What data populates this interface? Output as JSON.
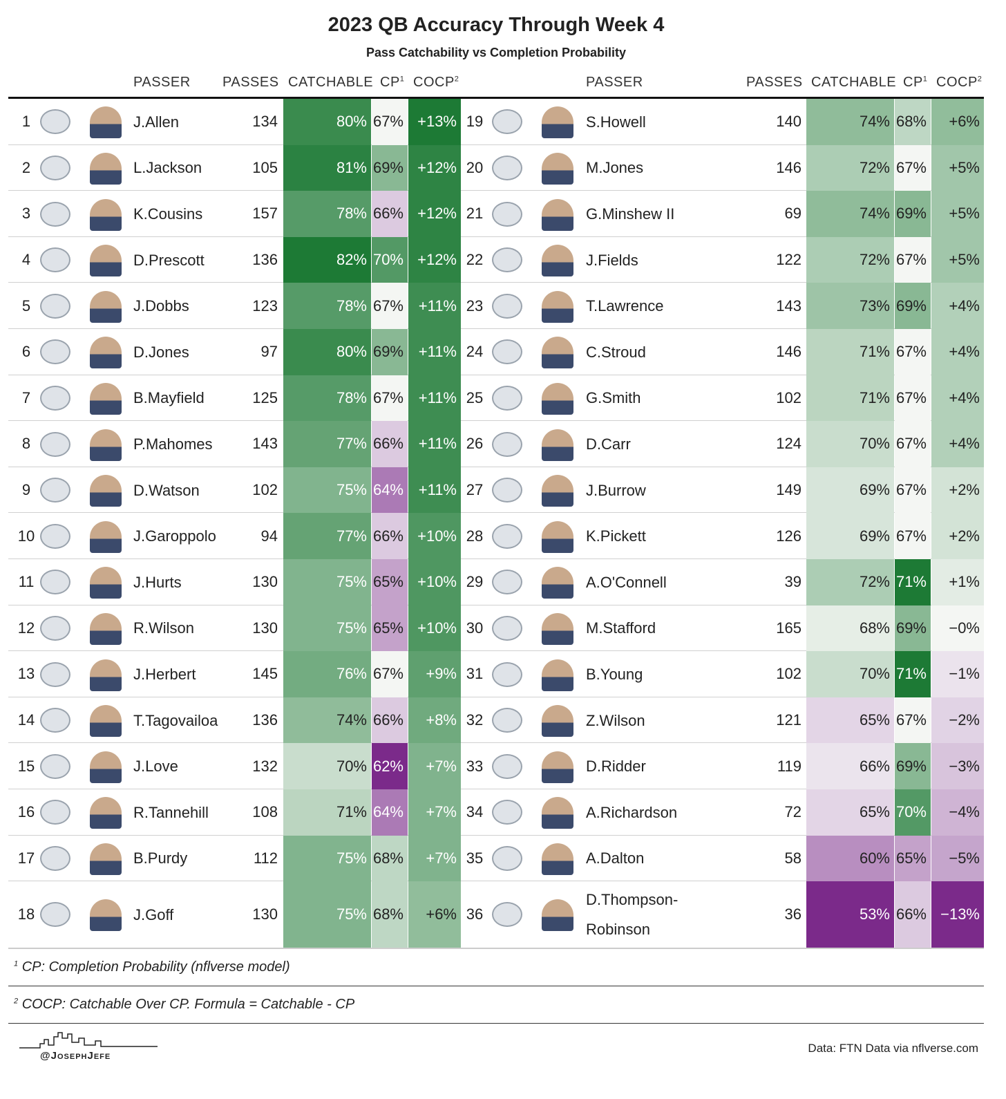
{
  "header": {
    "title": "2023 QB Accuracy Through Week 4",
    "subtitle": "Pass Catchability vs Completion Probability"
  },
  "columns": {
    "passer": "PASSER",
    "passes": "PASSES",
    "catchable": "CATCHABLE",
    "cp": "CP",
    "cp_note": "1",
    "cocp": "COCP",
    "cocp_note": "2"
  },
  "table": {
    "left": [
      [
        "1",
        "J.Allen",
        "134",
        "80%",
        "67%",
        "+13%"
      ],
      [
        "2",
        "L.Jackson",
        "105",
        "81%",
        "69%",
        "+12%"
      ],
      [
        "3",
        "K.Cousins",
        "157",
        "78%",
        "66%",
        "+12%"
      ],
      [
        "4",
        "D.Prescott",
        "136",
        "82%",
        "70%",
        "+12%"
      ],
      [
        "5",
        "J.Dobbs",
        "123",
        "78%",
        "67%",
        "+11%"
      ],
      [
        "6",
        "D.Jones",
        "97",
        "80%",
        "69%",
        "+11%"
      ],
      [
        "7",
        "B.Mayfield",
        "125",
        "78%",
        "67%",
        "+11%"
      ],
      [
        "8",
        "P.Mahomes",
        "143",
        "77%",
        "66%",
        "+11%"
      ],
      [
        "9",
        "D.Watson",
        "102",
        "75%",
        "64%",
        "+11%"
      ],
      [
        "10",
        "J.Garoppolo",
        "94",
        "77%",
        "66%",
        "+10%"
      ],
      [
        "11",
        "J.Hurts",
        "130",
        "75%",
        "65%",
        "+10%"
      ],
      [
        "12",
        "R.Wilson",
        "130",
        "75%",
        "65%",
        "+10%"
      ],
      [
        "13",
        "J.Herbert",
        "145",
        "76%",
        "67%",
        "+9%"
      ],
      [
        "14",
        "T.Tagovailoa",
        "136",
        "74%",
        "66%",
        "+8%"
      ],
      [
        "15",
        "J.Love",
        "132",
        "70%",
        "62%",
        "+7%"
      ],
      [
        "16",
        "R.Tannehill",
        "108",
        "71%",
        "64%",
        "+7%"
      ],
      [
        "17",
        "B.Purdy",
        "112",
        "75%",
        "68%",
        "+7%"
      ],
      [
        "18",
        "J.Goff",
        "130",
        "75%",
        "68%",
        "+6%"
      ]
    ],
    "right": [
      [
        "19",
        "S.Howell",
        "140",
        "74%",
        "68%",
        "+6%"
      ],
      [
        "20",
        "M.Jones",
        "146",
        "72%",
        "67%",
        "+5%"
      ],
      [
        "21",
        "G.Minshew II",
        "69",
        "74%",
        "69%",
        "+5%"
      ],
      [
        "22",
        "J.Fields",
        "122",
        "72%",
        "67%",
        "+5%"
      ],
      [
        "23",
        "T.Lawrence",
        "143",
        "73%",
        "69%",
        "+4%"
      ],
      [
        "24",
        "C.Stroud",
        "146",
        "71%",
        "67%",
        "+4%"
      ],
      [
        "25",
        "G.Smith",
        "102",
        "71%",
        "67%",
        "+4%"
      ],
      [
        "26",
        "D.Carr",
        "124",
        "70%",
        "67%",
        "+4%"
      ],
      [
        "27",
        "J.Burrow",
        "149",
        "69%",
        "67%",
        "+2%"
      ],
      [
        "28",
        "K.Pickett",
        "126",
        "69%",
        "67%",
        "+2%"
      ],
      [
        "29",
        "A.O'Connell",
        "39",
        "72%",
        "71%",
        "+1%"
      ],
      [
        "30",
        "M.Stafford",
        "165",
        "68%",
        "69%",
        "−0%"
      ],
      [
        "31",
        "B.Young",
        "102",
        "70%",
        "71%",
        "−1%"
      ],
      [
        "32",
        "Z.Wilson",
        "121",
        "65%",
        "67%",
        "−2%"
      ],
      [
        "33",
        "D.Ridder",
        "119",
        "66%",
        "69%",
        "−3%"
      ],
      [
        "34",
        "A.Richardson",
        "72",
        "65%",
        "70%",
        "−4%"
      ],
      [
        "35",
        "A.Dalton",
        "58",
        "60%",
        "65%",
        "−5%"
      ],
      [
        "36",
        "D.Thompson-Robinson",
        "36",
        "53%",
        "66%",
        "−13%"
      ]
    ]
  },
  "footnotes": [
    {
      "mark": "1",
      "text": "CP: Completion Probability (nflverse model)"
    },
    {
      "mark": "2",
      "text": "COCP: Catchable Over CP. Formula = Catchable - CP"
    }
  ],
  "footer": {
    "credit": "@JosephJefe",
    "source": "Data: FTN Data via nflverse.com"
  }
}
